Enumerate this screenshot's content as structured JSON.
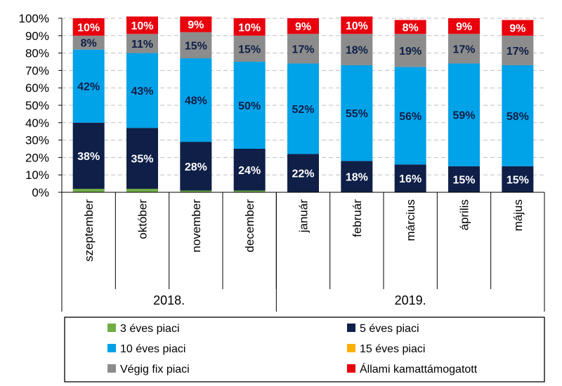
{
  "chart_data": {
    "type": "bar",
    "stacked": true,
    "ylim": [
      0,
      100
    ],
    "yticks": [
      "0%",
      "10%",
      "20%",
      "30%",
      "40%",
      "50%",
      "60%",
      "70%",
      "80%",
      "90%",
      "100%"
    ],
    "grid": true,
    "categories": [
      "szeptember",
      "október",
      "november",
      "december",
      "január",
      "február",
      "március",
      "április",
      "május"
    ],
    "groups": [
      {
        "label": "2018.",
        "count": 4
      },
      {
        "label": "2019.",
        "count": 5
      }
    ],
    "series": [
      {
        "name": "3 éves piaci",
        "color": "#70ad47",
        "values": [
          2,
          2,
          1,
          1,
          0,
          0,
          0,
          0,
          0
        ],
        "labels": [
          "",
          "",
          "",
          "",
          "",
          "",
          "",
          "",
          ""
        ]
      },
      {
        "name": "5 éves piaci",
        "color": "#0f1f47",
        "values": [
          38,
          35,
          28,
          24,
          22,
          18,
          16,
          15,
          15
        ],
        "labels": [
          "38%",
          "35%",
          "28%",
          "24%",
          "22%",
          "18%",
          "16%",
          "15%",
          "15%"
        ]
      },
      {
        "name": "10 éves piaci",
        "color": "#00a2e8",
        "values": [
          42,
          43,
          48,
          50,
          52,
          55,
          56,
          59,
          58
        ],
        "labels": [
          "42%",
          "43%",
          "48%",
          "50%",
          "52%",
          "55%",
          "56%",
          "59%",
          "58%"
        ]
      },
      {
        "name": "15 éves piaci",
        "color": "#ffb000",
        "values": [
          0,
          0,
          0,
          0,
          0,
          0,
          0,
          0,
          0
        ],
        "labels": [
          "",
          "",
          "",
          "",
          "",
          "",
          "",
          "",
          ""
        ]
      },
      {
        "name": "Végig fix piaci",
        "color": "#8c8c8c",
        "values": [
          8,
          11,
          15,
          15,
          17,
          18,
          19,
          17,
          17
        ],
        "labels": [
          "8%",
          "11%",
          "15%",
          "15%",
          "17%",
          "18%",
          "19%",
          "17%",
          "17%"
        ]
      },
      {
        "name": "Állami kamattámogatott",
        "color": "#e8000d",
        "values": [
          10,
          10,
          9,
          10,
          9,
          10,
          8,
          9,
          9
        ],
        "labels": [
          "10%",
          "10%",
          "9%",
          "10%",
          "9%",
          "10%",
          "8%",
          "9%",
          "9%"
        ]
      }
    ],
    "label_colors": [
      "#ffffff",
      "#ffffff",
      "#0f1f47",
      "#000000",
      "#0f1f47",
      "#ffffff"
    ],
    "legend": {
      "position": "bottom",
      "order": [
        "3 éves piaci",
        "5 éves piaci",
        "10 éves piaci",
        "15 éves piaci",
        "Végig fix piaci",
        "Állami kamattámogatott"
      ]
    }
  }
}
